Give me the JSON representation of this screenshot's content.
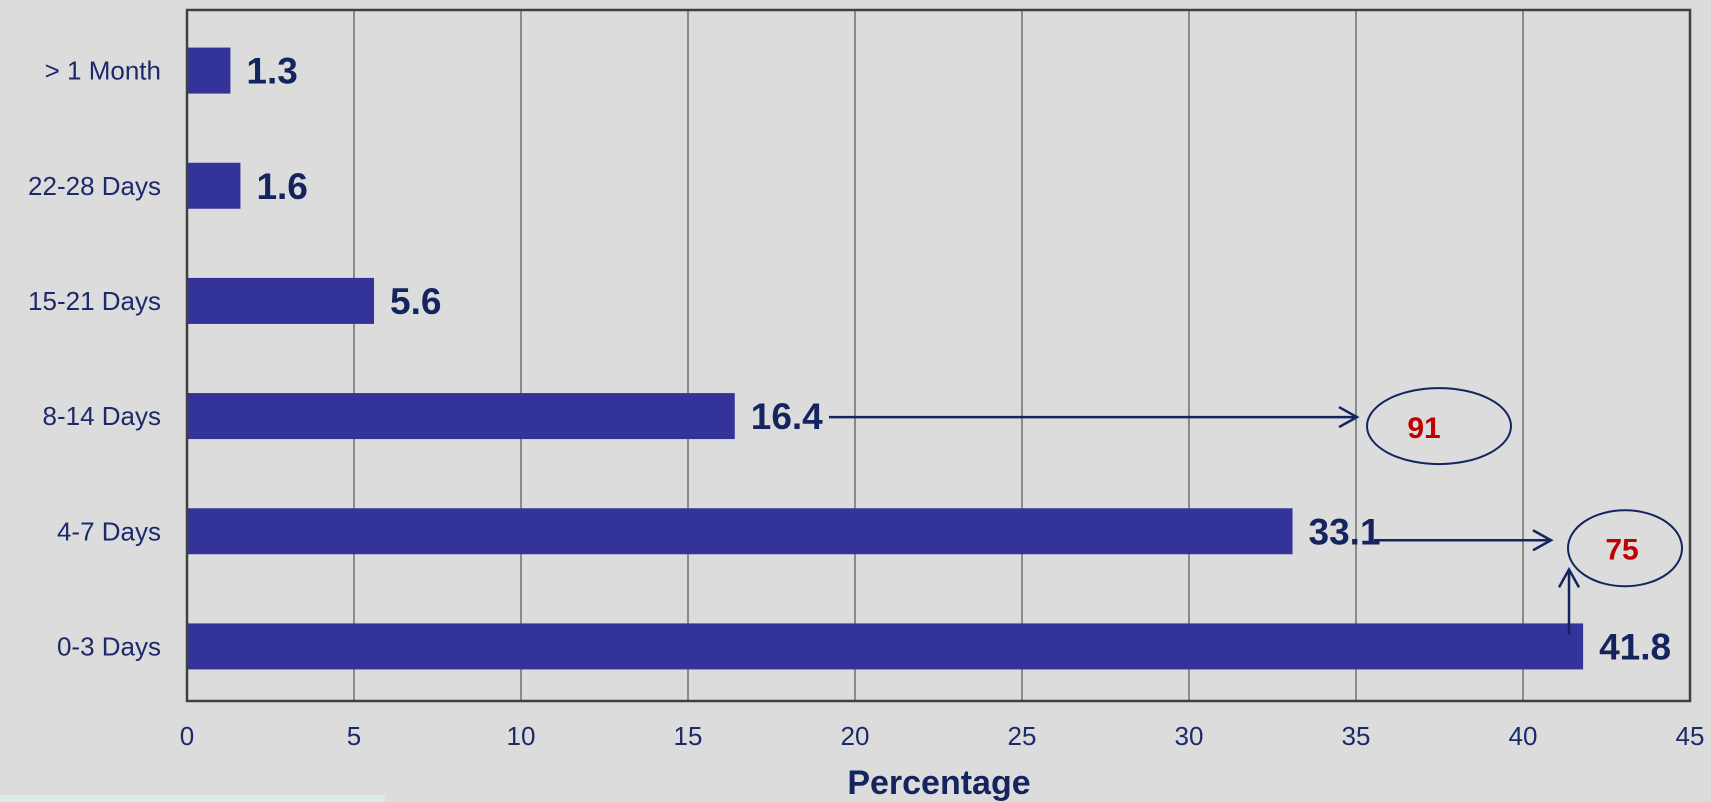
{
  "chart_data": {
    "type": "bar",
    "orientation": "horizontal",
    "categories": [
      "> 1 Month",
      "22-28 Days",
      "15-21 Days",
      "8-14 Days",
      "4-7 Days",
      "0-3 Days"
    ],
    "values": [
      1.3,
      1.6,
      5.6,
      16.4,
      33.1,
      41.8
    ],
    "value_labels": [
      "1.3",
      "1.6",
      "5.6",
      "16.4",
      "33.1",
      "41.8"
    ],
    "xlabel": "Percentage",
    "ylabel": "",
    "xlim": [
      0,
      45
    ],
    "xticks": [
      0,
      5,
      10,
      15,
      20,
      25,
      30,
      35,
      40,
      45
    ],
    "grid": "vertical",
    "legend": "none",
    "annotations": [
      {
        "text": "91",
        "shape": "ellipse",
        "from_category": "8-14 Days"
      },
      {
        "text": "75",
        "shape": "ellipse",
        "from_categories": [
          "4-7 Days",
          "0-3 Days"
        ]
      }
    ]
  },
  "colors": {
    "background": "#dcdcdc",
    "bar": "#333399",
    "gridline": "#8a8a8a",
    "axis": "#404040",
    "label_text": "#1c2a6b",
    "value_text": "#14245e",
    "arrow": "#14245e",
    "callout_text": "#c00000"
  }
}
